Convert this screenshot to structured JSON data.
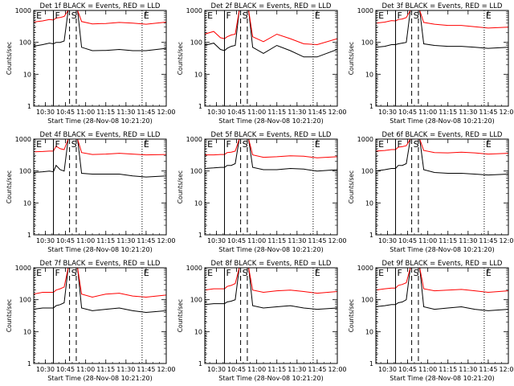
{
  "chart_data": {
    "type": "line",
    "layout": {
      "rows": 3,
      "cols": 3
    },
    "colors": {
      "events": "#000000",
      "lld": "#ff0000",
      "background": "#ffffff",
      "axes": "#000000"
    },
    "y_scale": "log",
    "ylim": [
      1,
      1000
    ],
    "y_ticks": [
      1,
      10,
      100,
      1000
    ],
    "y_tick_labels": [
      "1",
      "10",
      "100",
      "1000"
    ],
    "x_range": [
      "10:21:20",
      "12:00"
    ],
    "x_ticks": [
      "10:30",
      "10:45",
      "11:00",
      "11:15",
      "11:30",
      "11:45",
      "12:00"
    ],
    "ylabel": "Counts/sec",
    "xlabel": "Start Time (28-Nov-08 10:21:20)",
    "markers": [
      {
        "label": "E",
        "time": "10:22",
        "style": "dotted"
      },
      {
        "label": "F",
        "time": "10:36",
        "style": "solid"
      },
      {
        "label": "S",
        "time": "10:48",
        "style": "dashed"
      },
      {
        "time": "10:53",
        "style": "dashed"
      },
      {
        "label": "E",
        "time": "11:42",
        "style": "dotted"
      }
    ],
    "panels": [
      {
        "title": "Det 1f BLACK = Events, RED = LLD",
        "series": [
          {
            "name": "Events",
            "color": "#000000",
            "x": [
              "10:21",
              "10:28",
              "10:33",
              "10:36",
              "10:38",
              "10:41",
              "10:44",
              "10:47",
              "10:54",
              "10:57",
              "11:05",
              "11:15",
              "11:25",
              "11:35",
              "11:45",
              "12:00"
            ],
            "y": [
              75,
              85,
              95,
              90,
              100,
              100,
              110,
              1000,
              1000,
              70,
              55,
              56,
              60,
              55,
              55,
              65
            ]
          },
          {
            "name": "LLD",
            "color": "#ff0000",
            "x": [
              "10:21",
              "10:28",
              "10:33",
              "10:36",
              "10:38",
              "10:41",
              "10:44",
              "10:47",
              "10:54",
              "10:57",
              "11:05",
              "11:15",
              "11:25",
              "11:35",
              "11:45",
              "12:00"
            ],
            "y": [
              430,
              470,
              520,
              500,
              580,
              600,
              650,
              1000,
              1000,
              450,
              380,
              390,
              420,
              400,
              370,
              430
            ]
          }
        ]
      },
      {
        "title": "Det 2f BLACK = Events, RED = LLD",
        "series": [
          {
            "name": "Events",
            "color": "#000000",
            "x": [
              "10:21",
              "10:28",
              "10:33",
              "10:36",
              "10:38",
              "10:41",
              "10:44",
              "10:47",
              "10:54",
              "10:57",
              "11:05",
              "11:15",
              "11:25",
              "11:35",
              "11:45",
              "12:00"
            ],
            "y": [
              80,
              95,
              60,
              55,
              65,
              75,
              80,
              1000,
              1000,
              70,
              45,
              80,
              55,
              35,
              35,
              60
            ]
          },
          {
            "name": "LLD",
            "color": "#ff0000",
            "x": [
              "10:21",
              "10:28",
              "10:33",
              "10:36",
              "10:38",
              "10:41",
              "10:44",
              "10:47",
              "10:54",
              "10:57",
              "11:05",
              "11:15",
              "11:25",
              "11:35",
              "11:45",
              "12:00"
            ],
            "y": [
              180,
              220,
              140,
              130,
              150,
              170,
              180,
              1000,
              1000,
              150,
              105,
              180,
              130,
              90,
              85,
              130
            ]
          }
        ]
      },
      {
        "title": "Det 3f BLACK = Events, RED = LLD",
        "series": [
          {
            "name": "Events",
            "color": "#000000",
            "x": [
              "10:21",
              "10:28",
              "10:33",
              "10:36",
              "10:38",
              "10:41",
              "10:44",
              "10:47",
              "10:54",
              "10:57",
              "11:05",
              "11:15",
              "11:25",
              "11:35",
              "11:45",
              "12:00"
            ],
            "y": [
              70,
              75,
              85,
              85,
              90,
              95,
              100,
              1000,
              1000,
              90,
              80,
              75,
              75,
              70,
              65,
              70
            ]
          },
          {
            "name": "LLD",
            "color": "#ff0000",
            "x": [
              "10:21",
              "10:28",
              "10:33",
              "10:36",
              "10:38",
              "10:41",
              "10:44",
              "10:47",
              "10:54",
              "10:57",
              "11:05",
              "11:15",
              "11:25",
              "11:35",
              "11:45",
              "12:00"
            ],
            "y": [
              400,
              430,
              480,
              470,
              520,
              540,
              600,
              1000,
              1000,
              420,
              370,
              340,
              340,
              310,
              280,
              300
            ]
          }
        ]
      },
      {
        "title": "Det 4f BLACK = Events, RED = LLD",
        "series": [
          {
            "name": "Events",
            "color": "#000000",
            "x": [
              "10:21",
              "10:28",
              "10:33",
              "10:36",
              "10:38",
              "10:41",
              "10:44",
              "10:47",
              "10:54",
              "10:57",
              "11:05",
              "11:15",
              "11:25",
              "11:35",
              "11:45",
              "12:00"
            ],
            "y": [
              90,
              95,
              100,
              95,
              150,
              110,
              100,
              1000,
              1000,
              85,
              80,
              80,
              80,
              70,
              65,
              70
            ]
          },
          {
            "name": "LLD",
            "color": "#ff0000",
            "x": [
              "10:21",
              "10:28",
              "10:33",
              "10:36",
              "10:38",
              "10:41",
              "10:44",
              "10:47",
              "10:54",
              "10:57",
              "11:05",
              "11:15",
              "11:25",
              "11:35",
              "11:45",
              "12:00"
            ],
            "y": [
              400,
              410,
              420,
              420,
              600,
              500,
              470,
              1000,
              1000,
              380,
              330,
              340,
              360,
              340,
              320,
              330
            ]
          }
        ]
      },
      {
        "title": "Det 5f BLACK = Events, RED = LLD",
        "series": [
          {
            "name": "Events",
            "color": "#000000",
            "x": [
              "10:21",
              "10:28",
              "10:33",
              "10:36",
              "10:38",
              "10:41",
              "10:44",
              "10:47",
              "10:54",
              "10:57",
              "11:05",
              "11:15",
              "11:25",
              "11:35",
              "11:45",
              "12:00"
            ],
            "y": [
              120,
              125,
              130,
              130,
              150,
              150,
              170,
              1000,
              1000,
              130,
              110,
              110,
              120,
              115,
              100,
              110
            ]
          },
          {
            "name": "LLD",
            "color": "#ff0000",
            "x": [
              "10:21",
              "10:28",
              "10:33",
              "10:36",
              "10:38",
              "10:41",
              "10:44",
              "10:47",
              "10:54",
              "10:57",
              "11:05",
              "11:15",
              "11:25",
              "11:35",
              "11:45",
              "12:00"
            ],
            "y": [
              320,
              320,
              330,
              330,
              380,
              390,
              420,
              1000,
              1000,
              320,
              270,
              280,
              300,
              290,
              260,
              280
            ]
          }
        ]
      },
      {
        "title": "Det 6f BLACK = Events, RED = LLD",
        "series": [
          {
            "name": "Events",
            "color": "#000000",
            "x": [
              "10:21",
              "10:28",
              "10:33",
              "10:36",
              "10:38",
              "10:41",
              "10:44",
              "10:47",
              "10:54",
              "10:57",
              "11:05",
              "11:15",
              "11:25",
              "11:35",
              "11:45",
              "12:00"
            ],
            "y": [
              100,
              110,
              120,
              120,
              150,
              150,
              170,
              1000,
              1000,
              110,
              90,
              85,
              85,
              80,
              75,
              80
            ]
          },
          {
            "name": "LLD",
            "color": "#ff0000",
            "x": [
              "10:21",
              "10:28",
              "10:33",
              "10:36",
              "10:38",
              "10:41",
              "10:44",
              "10:47",
              "10:54",
              "10:57",
              "11:05",
              "11:15",
              "11:25",
              "11:35",
              "11:45",
              "12:00"
            ],
            "y": [
              420,
              440,
              470,
              470,
              560,
              580,
              620,
              1000,
              1000,
              440,
              380,
              370,
              390,
              370,
              340,
              360
            ]
          }
        ]
      },
      {
        "title": "Det 7f BLACK = Events, RED = LLD",
        "series": [
          {
            "name": "Events",
            "color": "#000000",
            "x": [
              "10:21",
              "10:28",
              "10:33",
              "10:36",
              "10:38",
              "10:41",
              "10:44",
              "10:47",
              "10:54",
              "10:57",
              "11:05",
              "11:15",
              "11:25",
              "11:35",
              "11:45",
              "12:00"
            ],
            "y": [
              50,
              55,
              55,
              55,
              65,
              70,
              80,
              1000,
              1000,
              55,
              45,
              50,
              55,
              45,
              40,
              45
            ]
          },
          {
            "name": "LLD",
            "color": "#ff0000",
            "x": [
              "10:21",
              "10:28",
              "10:33",
              "10:36",
              "10:38",
              "10:41",
              "10:44",
              "10:47",
              "10:54",
              "10:57",
              "11:05",
              "11:15",
              "11:25",
              "11:35",
              "11:45",
              "12:00"
            ],
            "y": [
              150,
              170,
              170,
              170,
              200,
              220,
              250,
              1000,
              1000,
              150,
              120,
              150,
              160,
              130,
              120,
              140
            ]
          }
        ]
      },
      {
        "title": "Det 8f BLACK = Events, RED = LLD",
        "series": [
          {
            "name": "Events",
            "color": "#000000",
            "x": [
              "10:21",
              "10:28",
              "10:33",
              "10:36",
              "10:38",
              "10:41",
              "10:44",
              "10:47",
              "10:54",
              "10:57",
              "11:05",
              "11:15",
              "11:25",
              "11:35",
              "11:45",
              "12:00"
            ],
            "y": [
              70,
              75,
              75,
              75,
              85,
              90,
              100,
              1000,
              1000,
              65,
              55,
              60,
              65,
              55,
              50,
              55
            ]
          },
          {
            "name": "LLD",
            "color": "#ff0000",
            "x": [
              "10:21",
              "10:28",
              "10:33",
              "10:36",
              "10:38",
              "10:41",
              "10:44",
              "10:47",
              "10:54",
              "10:57",
              "11:05",
              "11:15",
              "11:25",
              "11:35",
              "11:45",
              "12:00"
            ],
            "y": [
              200,
              220,
              220,
              220,
              260,
              280,
              320,
              1000,
              1000,
              200,
              170,
              190,
              200,
              180,
              160,
              180
            ]
          }
        ]
      },
      {
        "title": "Det 9f BLACK = Events, RED = LLD",
        "series": [
          {
            "name": "Events",
            "color": "#000000",
            "x": [
              "10:21",
              "10:28",
              "10:33",
              "10:36",
              "10:38",
              "10:41",
              "10:44",
              "10:47",
              "10:54",
              "10:57",
              "11:05",
              "11:15",
              "11:25",
              "11:35",
              "11:45",
              "12:00"
            ],
            "y": [
              60,
              65,
              70,
              70,
              80,
              85,
              100,
              1000,
              1000,
              60,
              50,
              55,
              60,
              50,
              45,
              50
            ]
          },
          {
            "name": "LLD",
            "color": "#ff0000",
            "x": [
              "10:21",
              "10:28",
              "10:33",
              "10:36",
              "10:38",
              "10:41",
              "10:44",
              "10:47",
              "10:54",
              "10:57",
              "11:05",
              "11:15",
              "11:25",
              "11:35",
              "11:45",
              "12:00"
            ],
            "y": [
              200,
              220,
              230,
              230,
              280,
              300,
              340,
              1000,
              1000,
              220,
              190,
              200,
              210,
              190,
              170,
              190
            ]
          }
        ]
      }
    ]
  }
}
